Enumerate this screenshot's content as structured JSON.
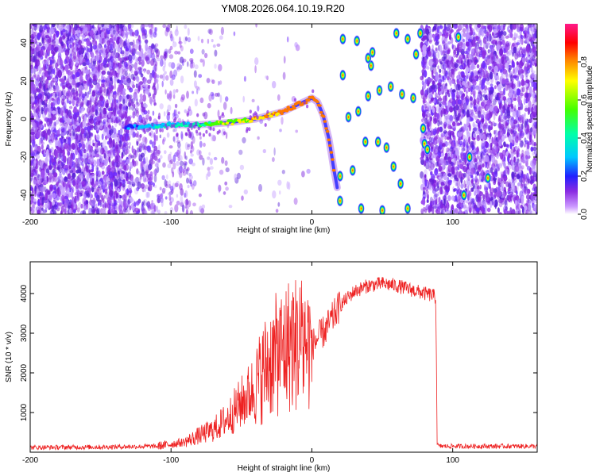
{
  "title": "YM08.2026.064.10.19.R20",
  "chart_data": [
    {
      "type": "heatmap",
      "xlabel": "Height of straight line (km)",
      "ylabel": "Frequency (Hz)",
      "xlim": [
        -200,
        160
      ],
      "ylim": [
        -50,
        50
      ],
      "xticks": [
        -200,
        -100,
        0,
        100
      ],
      "xtick_labels": [
        "-200",
        "-100",
        "0",
        "100"
      ],
      "yticks": [
        -40,
        -20,
        0,
        20,
        40
      ],
      "ytick_labels": [
        "-40",
        "-20",
        "0",
        "20",
        "40"
      ],
      "colorbar": {
        "label": "Normalized spectral amplitude",
        "range": [
          0,
          1
        ],
        "ticks": [
          0.0,
          0.2,
          0.4,
          0.6,
          0.8
        ],
        "tick_labels": [
          "0.0",
          "0.2",
          "0.4",
          "0.6",
          "0.8"
        ]
      },
      "trace": {
        "x": [
          -132,
          -120,
          -100,
          -80,
          -60,
          -40,
          -20,
          0,
          4,
          8,
          12,
          16,
          20
        ],
        "y": [
          -4,
          -4,
          -3,
          -3,
          -2,
          0,
          4,
          11,
          9,
          2,
          -10,
          -28,
          -44
        ]
      },
      "blobs": [
        {
          "x": 22,
          "y": 42
        },
        {
          "x": 32,
          "y": 41
        },
        {
          "x": 22,
          "y": 23
        },
        {
          "x": 33,
          "y": 4
        },
        {
          "x": 40,
          "y": 12
        },
        {
          "x": 42,
          "y": 28
        },
        {
          "x": 43,
          "y": 35
        },
        {
          "x": 40,
          "y": 32
        },
        {
          "x": 48,
          "y": 15
        },
        {
          "x": 56,
          "y": 17
        },
        {
          "x": 60,
          "y": 45
        },
        {
          "x": 68,
          "y": 42
        },
        {
          "x": 77,
          "y": 45
        },
        {
          "x": 74,
          "y": 34
        },
        {
          "x": 64,
          "y": 13
        },
        {
          "x": 72,
          "y": 11
        },
        {
          "x": 26,
          "y": 1
        },
        {
          "x": 20,
          "y": -30
        },
        {
          "x": 29,
          "y": -27
        },
        {
          "x": 20,
          "y": -43
        },
        {
          "x": 38,
          "y": -12
        },
        {
          "x": 47,
          "y": -12
        },
        {
          "x": 53,
          "y": -15
        },
        {
          "x": 58,
          "y": -25
        },
        {
          "x": 63,
          "y": -34
        },
        {
          "x": 68,
          "y": -47
        },
        {
          "x": 50,
          "y": -48
        },
        {
          "x": 35,
          "y": -47
        },
        {
          "x": 80,
          "y": -13
        },
        {
          "x": 82,
          "y": -16
        },
        {
          "x": 79,
          "y": -5
        },
        {
          "x": 104,
          "y": 43
        },
        {
          "x": 108,
          "y": -40
        },
        {
          "x": 112,
          "y": -20
        },
        {
          "x": 125,
          "y": -31
        }
      ]
    },
    {
      "type": "line",
      "xlabel": "Height of straight line (km)",
      "ylabel": "SNR (10 * v/v)",
      "xlim": [
        -200,
        160
      ],
      "ylim": [
        0,
        4800
      ],
      "xticks": [
        -200,
        -100,
        0,
        100
      ],
      "xtick_labels": [
        "-200",
        "-100",
        "0",
        "100"
      ],
      "yticks": [
        1000,
        2000,
        3000,
        4000
      ],
      "ytick_labels": [
        "1000",
        "2000",
        "3000",
        "4000"
      ],
      "series": [
        {
          "name": "SNR",
          "color": "#ee2222",
          "x": [
            -200,
            -150,
            -110,
            -90,
            -80,
            -70,
            -60,
            -50,
            -40,
            -35,
            -30,
            -20,
            -15,
            -10,
            -5,
            0,
            10,
            20,
            30,
            40,
            50,
            60,
            70,
            80,
            86,
            88,
            89,
            90,
            100,
            120,
            140,
            160
          ],
          "y": [
            120,
            130,
            150,
            260,
            420,
            560,
            850,
            1250,
            1650,
            2000,
            2300,
            2600,
            2750,
            2750,
            2700,
            2700,
            3100,
            3700,
            4050,
            4200,
            4250,
            4200,
            4100,
            4000,
            3950,
            3900,
            200,
            150,
            150,
            150,
            150,
            150
          ]
        }
      ]
    }
  ]
}
